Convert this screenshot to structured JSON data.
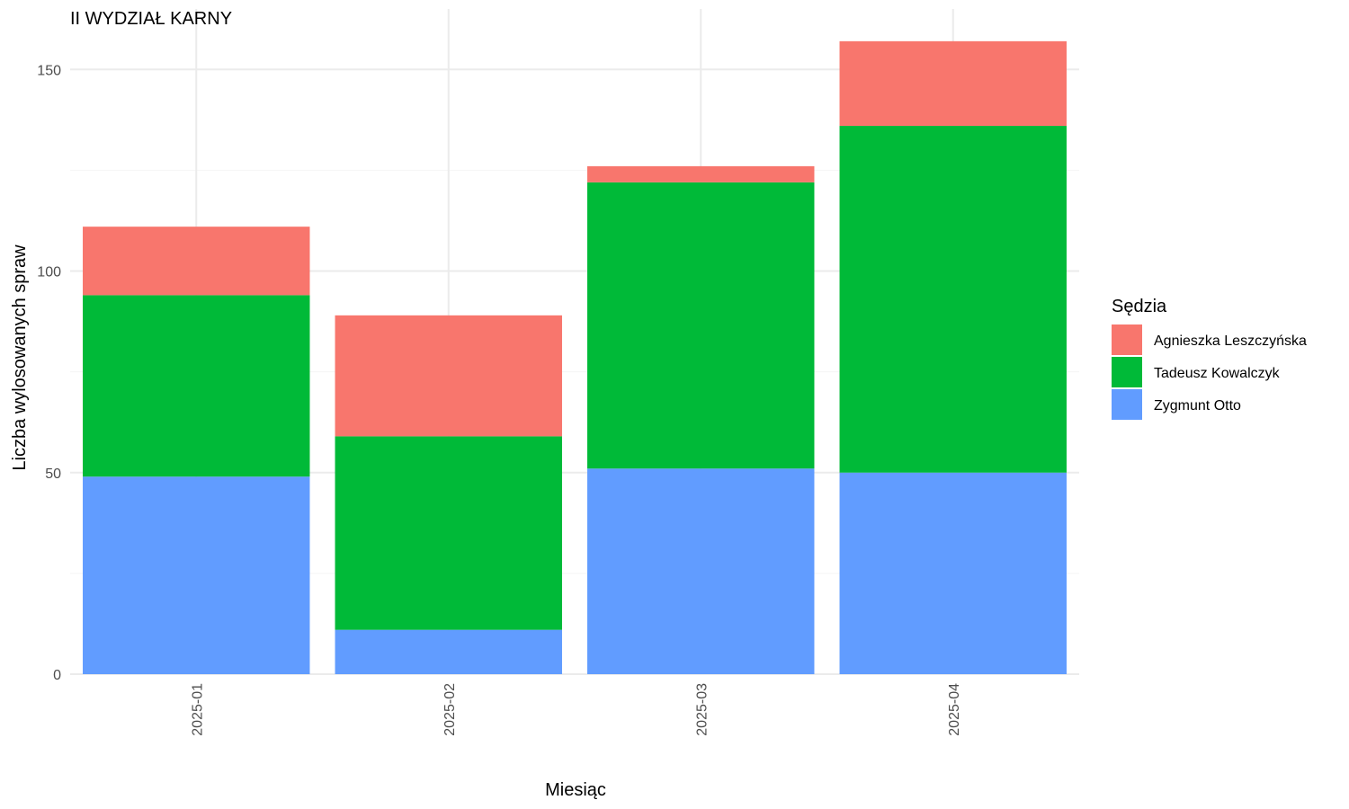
{
  "chart_data": {
    "type": "bar",
    "stacked": true,
    "title": "II WYDZIAŁ KARNY",
    "xlabel": "Miesiąc",
    "ylabel": "Liczba wylosowanych spraw",
    "categories": [
      "2025-01",
      "2025-02",
      "2025-03",
      "2025-04"
    ],
    "ylim": [
      0,
      160
    ],
    "yticks": [
      0,
      50,
      100,
      150
    ],
    "grid": true,
    "legend": {
      "title": "Sędzia",
      "position": "right"
    },
    "series": [
      {
        "name": "Zygmunt Otto",
        "color": "#619CFF",
        "values": [
          49,
          11,
          51,
          50
        ]
      },
      {
        "name": "Tadeusz Kowalczyk",
        "color": "#00BA38",
        "values": [
          45,
          48,
          71,
          86
        ]
      },
      {
        "name": "Agnieszka Leszczyńska",
        "color": "#F8766D",
        "values": [
          17,
          30,
          4,
          21
        ]
      }
    ],
    "legend_order": [
      "Agnieszka Leszczyńska",
      "Tadeusz Kowalczyk",
      "Zygmunt Otto"
    ]
  }
}
